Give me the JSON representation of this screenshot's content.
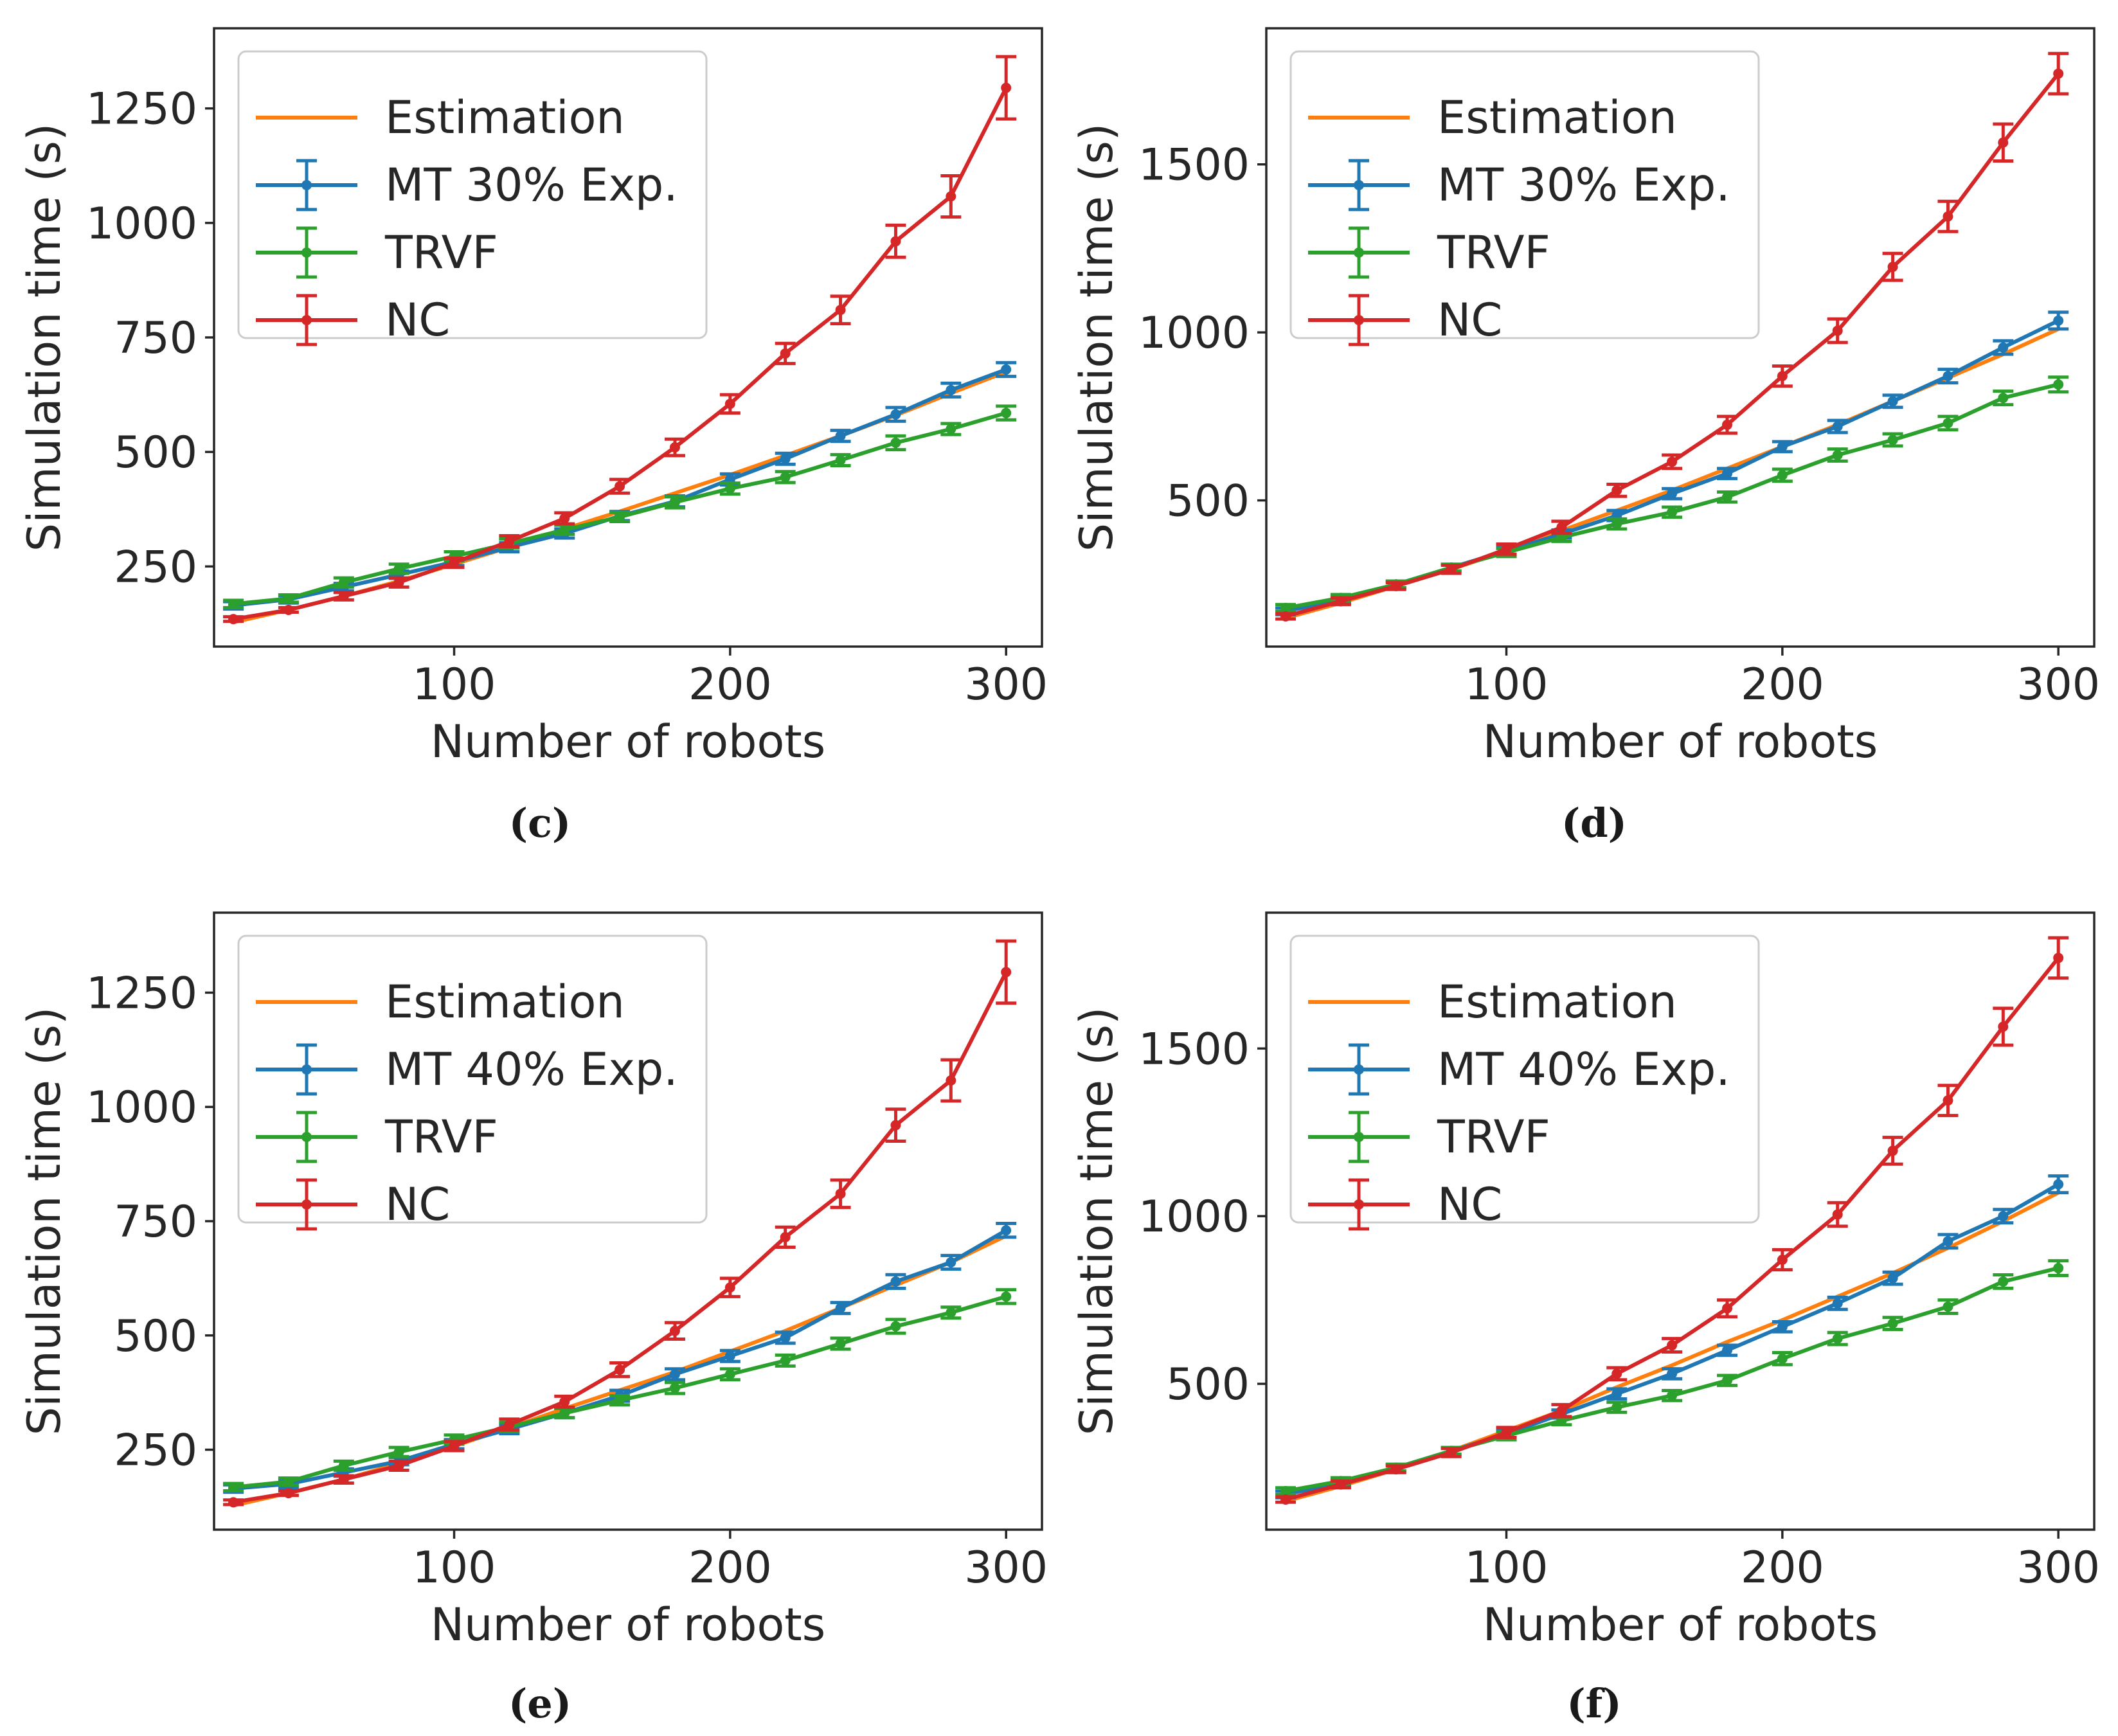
{
  "colors": {
    "Estimation": "#ff7f0e",
    "MT": "#1f77b4",
    "TRVF": "#2ca02c",
    "NC": "#d62728",
    "axes": "#262626"
  },
  "chart_data": [
    {
      "panel": "c",
      "caption": "(c)",
      "type": "line",
      "xlabel": "Number of robots",
      "ylabel": "Simulation time (s)",
      "xlim": [
        13,
        313
      ],
      "ylim": [
        75,
        1425
      ],
      "xticks": [
        100,
        200,
        300
      ],
      "yticks": [
        250,
        500,
        750,
        1000,
        1250
      ],
      "grid": false,
      "legend_position": "top-left",
      "x": [
        20,
        40,
        60,
        80,
        100,
        120,
        140,
        160,
        180,
        200,
        220,
        240,
        260,
        280,
        300
      ],
      "series": [
        {
          "name": "Estimation",
          "color_key": "Estimation",
          "errorbars": false,
          "values": [
            128,
            155,
            185,
            218,
            255,
            292,
            332,
            370,
            410,
            450,
            492,
            535,
            580,
            628,
            675
          ]
        },
        {
          "name": "MT 30% Exp.",
          "color_key": "MT",
          "errorbars": true,
          "values": [
            165,
            178,
            205,
            232,
            260,
            292,
            322,
            360,
            392,
            440,
            485,
            535,
            582,
            635,
            680
          ],
          "errors": [
            8,
            8,
            8,
            8,
            8,
            10,
            10,
            10,
            12,
            12,
            12,
            12,
            15,
            15,
            15
          ]
        },
        {
          "name": "TRVF",
          "color_key": "TRVF",
          "errorbars": true,
          "values": [
            168,
            180,
            215,
            245,
            272,
            300,
            330,
            358,
            390,
            420,
            445,
            482,
            520,
            550,
            585
          ],
          "errors": [
            8,
            8,
            10,
            10,
            10,
            10,
            10,
            10,
            12,
            12,
            12,
            12,
            15,
            12,
            15
          ]
        },
        {
          "name": "NC",
          "color_key": "NC",
          "errorbars": true,
          "values": [
            135,
            155,
            185,
            215,
            258,
            305,
            355,
            425,
            510,
            605,
            715,
            810,
            960,
            1058,
            1295
          ],
          "errors": [
            5,
            5,
            8,
            10,
            10,
            12,
            12,
            15,
            18,
            20,
            22,
            30,
            35,
            45,
            68
          ]
        }
      ]
    },
    {
      "panel": "d",
      "caption": "(d)",
      "type": "line",
      "xlabel": "Number of robots",
      "ylabel": "Simulation time (s)",
      "xlim": [
        13,
        313
      ],
      "ylim": [
        65,
        1905
      ],
      "xticks": [
        100,
        200,
        300
      ],
      "yticks": [
        500,
        1000,
        1500
      ],
      "grid": false,
      "legend_position": "top-left",
      "x": [
        20,
        40,
        60,
        80,
        100,
        120,
        140,
        160,
        180,
        200,
        220,
        240,
        260,
        280,
        300
      ],
      "series": [
        {
          "name": "Estimation",
          "color_key": "Estimation",
          "errorbars": false,
          "values": [
            150,
            195,
            245,
            295,
            350,
            410,
            470,
            530,
            595,
            660,
            725,
            795,
            865,
            935,
            1010
          ]
        },
        {
          "name": "MT 30% Exp.",
          "color_key": "MT",
          "errorbars": true,
          "values": [
            170,
            205,
            250,
            300,
            350,
            400,
            455,
            520,
            580,
            660,
            720,
            795,
            870,
            955,
            1035
          ],
          "errors": [
            10,
            10,
            10,
            10,
            12,
            12,
            15,
            15,
            15,
            15,
            18,
            18,
            20,
            20,
            25
          ]
        },
        {
          "name": "TRVF",
          "color_key": "TRVF",
          "errorbars": true,
          "values": [
            180,
            210,
            250,
            300,
            345,
            390,
            430,
            465,
            510,
            575,
            635,
            680,
            730,
            805,
            845
          ],
          "errors": [
            10,
            10,
            10,
            10,
            12,
            12,
            15,
            15,
            15,
            18,
            18,
            18,
            20,
            20,
            22
          ]
        },
        {
          "name": "NC",
          "color_key": "NC",
          "errorbars": true,
          "values": [
            155,
            200,
            245,
            295,
            355,
            420,
            530,
            615,
            725,
            870,
            1005,
            1195,
            1345,
            1565,
            1770
          ],
          "errors": [
            8,
            10,
            10,
            12,
            15,
            18,
            18,
            20,
            25,
            30,
            35,
            40,
            45,
            55,
            60
          ]
        }
      ]
    },
    {
      "panel": "e",
      "caption": "(e)",
      "type": "line",
      "xlabel": "Number of robots",
      "ylabel": "Simulation time (s)",
      "xlim": [
        13,
        313
      ],
      "ylim": [
        75,
        1425
      ],
      "xticks": [
        100,
        200,
        300
      ],
      "yticks": [
        250,
        500,
        750,
        1000,
        1250
      ],
      "grid": false,
      "legend_position": "top-left",
      "x": [
        20,
        40,
        60,
        80,
        100,
        120,
        140,
        160,
        180,
        200,
        220,
        240,
        260,
        280,
        300
      ],
      "series": [
        {
          "name": "Estimation",
          "color_key": "Estimation",
          "errorbars": false,
          "values": [
            128,
            155,
            185,
            220,
            258,
            298,
            340,
            380,
            420,
            465,
            510,
            560,
            610,
            660,
            718
          ]
        },
        {
          "name": "MT 40% Exp.",
          "color_key": "MT",
          "errorbars": true,
          "values": [
            165,
            175,
            200,
            225,
            262,
            295,
            330,
            368,
            415,
            455,
            495,
            560,
            618,
            660,
            730
          ],
          "errors": [
            8,
            8,
            8,
            8,
            10,
            10,
            10,
            12,
            12,
            12,
            12,
            12,
            15,
            15,
            15
          ]
        },
        {
          "name": "TRVF",
          "color_key": "TRVF",
          "errorbars": true,
          "values": [
            168,
            180,
            215,
            245,
            272,
            300,
            330,
            358,
            385,
            415,
            445,
            482,
            520,
            550,
            585
          ],
          "errors": [
            8,
            8,
            10,
            10,
            10,
            10,
            10,
            10,
            12,
            12,
            12,
            12,
            15,
            12,
            15
          ]
        },
        {
          "name": "NC",
          "color_key": "NC",
          "errorbars": true,
          "values": [
            135,
            155,
            185,
            215,
            258,
            305,
            355,
            425,
            510,
            605,
            715,
            810,
            960,
            1058,
            1295
          ],
          "errors": [
            5,
            5,
            8,
            10,
            10,
            12,
            12,
            15,
            18,
            20,
            22,
            30,
            35,
            45,
            68
          ]
        }
      ]
    },
    {
      "panel": "f",
      "caption": "(f)",
      "type": "line",
      "xlabel": "Number of robots",
      "ylabel": "Simulation time (s)",
      "xlim": [
        13,
        313
      ],
      "ylim": [
        65,
        1905
      ],
      "xticks": [
        100,
        200,
        300
      ],
      "yticks": [
        500,
        1000,
        1500
      ],
      "grid": false,
      "legend_position": "top-left",
      "x": [
        20,
        40,
        60,
        80,
        100,
        120,
        140,
        160,
        180,
        200,
        220,
        240,
        260,
        280,
        300
      ],
      "series": [
        {
          "name": "Estimation",
          "color_key": "Estimation",
          "errorbars": false,
          "values": [
            150,
            195,
            245,
            300,
            360,
            420,
            490,
            555,
            625,
            690,
            760,
            830,
            905,
            985,
            1070
          ]
        },
        {
          "name": "MT 40% Exp.",
          "color_key": "MT",
          "errorbars": true,
          "values": [
            170,
            205,
            250,
            300,
            350,
            410,
            470,
            530,
            600,
            670,
            740,
            815,
            925,
            1000,
            1095
          ],
          "errors": [
            10,
            10,
            10,
            10,
            12,
            12,
            15,
            15,
            15,
            15,
            18,
            18,
            20,
            20,
            25
          ]
        },
        {
          "name": "TRVF",
          "color_key": "TRVF",
          "errorbars": true,
          "values": [
            180,
            210,
            250,
            300,
            345,
            390,
            430,
            465,
            510,
            575,
            635,
            680,
            730,
            805,
            845
          ],
          "errors": [
            10,
            10,
            10,
            10,
            12,
            12,
            15,
            15,
            15,
            18,
            18,
            18,
            20,
            20,
            22
          ]
        },
        {
          "name": "NC",
          "color_key": "NC",
          "errorbars": true,
          "values": [
            155,
            200,
            245,
            295,
            355,
            420,
            530,
            615,
            725,
            870,
            1005,
            1195,
            1345,
            1565,
            1770
          ],
          "errors": [
            8,
            10,
            10,
            12,
            15,
            18,
            18,
            20,
            25,
            30,
            35,
            40,
            45,
            55,
            60
          ]
        }
      ]
    }
  ]
}
